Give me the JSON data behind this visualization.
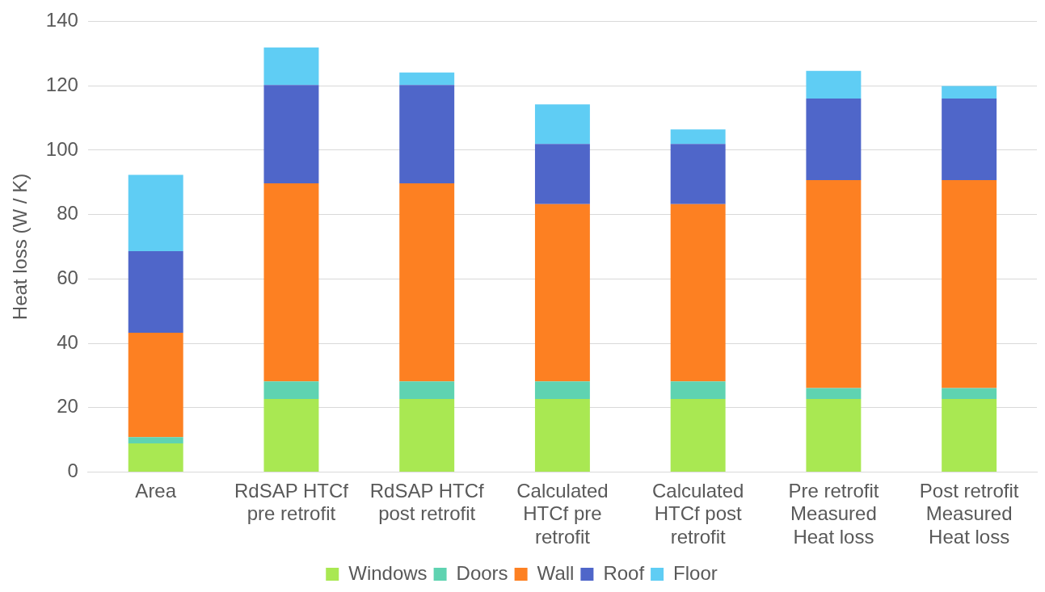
{
  "chart_data": {
    "type": "bar",
    "stacked": true,
    "ylabel": "Heat loss (W / K)",
    "categories": [
      "Area",
      "RdSAP HTCf pre retrofit",
      "RdSAP HTCf post retrofit",
      "Calculated HTCf pre retrofit",
      "Calculated HTCf post retrofit",
      "Pre retrofit Measured Heat loss",
      "Post retrofit Measured Heat loss"
    ],
    "series": [
      {
        "name": "Windows",
        "color": "#a9e852",
        "values": [
          8.9,
          22.7,
          22.7,
          22.7,
          22.7,
          22.7,
          22.7
        ]
      },
      {
        "name": "Doors",
        "color": "#5fd3b1",
        "values": [
          2.0,
          5.5,
          5.5,
          5.5,
          5.5,
          3.4,
          3.4
        ]
      },
      {
        "name": "Wall",
        "color": "#fd8022",
        "values": [
          32.4,
          61.5,
          61.5,
          55.0,
          55.0,
          64.6,
          64.6
        ]
      },
      {
        "name": "Roof",
        "color": "#4f66c9",
        "values": [
          25.3,
          30.5,
          30.5,
          18.7,
          18.7,
          25.3,
          25.3
        ]
      },
      {
        "name": "Floor",
        "color": "#5fcdf4",
        "values": [
          23.7,
          11.7,
          3.9,
          12.3,
          4.5,
          8.6,
          3.9
        ]
      }
    ],
    "ylim": [
      0,
      140
    ],
    "yticks": [
      0,
      20,
      40,
      60,
      80,
      100,
      120,
      140
    ],
    "grid": "y",
    "legend": "bottom"
  }
}
